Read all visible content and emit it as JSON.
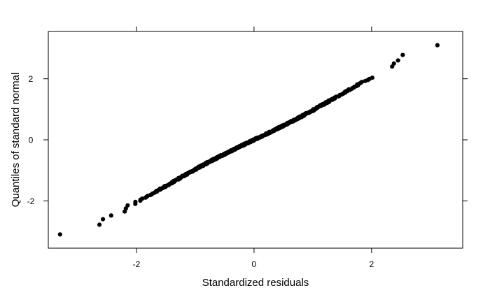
{
  "chart_data": {
    "type": "scatter",
    "title": "",
    "xlabel": "Standardized residuals",
    "ylabel": "Quantiles of standard normal",
    "xlim": [
      -3.5,
      3.55
    ],
    "ylim": [
      -3.55,
      3.55
    ],
    "x_ticks": [
      -2,
      0,
      2
    ],
    "x_tick_labels": [
      "-2",
      "0",
      "2"
    ],
    "y_ticks": [
      -2,
      0,
      2
    ],
    "y_tick_labels": [
      "-2",
      "0",
      "2"
    ],
    "grid": false,
    "n_points": 500,
    "point_color": "#000000",
    "outlier_points": [
      {
        "x": -3.3,
        "y": -3.1
      },
      {
        "x": -2.63,
        "y": -2.78
      },
      {
        "x": -2.57,
        "y": -2.6
      },
      {
        "x": -2.43,
        "y": -2.48
      },
      {
        "x": -2.2,
        "y": -2.35
      },
      {
        "x": -2.18,
        "y": -2.25
      },
      {
        "x": -2.15,
        "y": -2.15
      },
      {
        "x": -2.02,
        "y": -2.1
      },
      {
        "x": 2.35,
        "y": 2.4
      },
      {
        "x": 2.38,
        "y": 2.5
      },
      {
        "x": 2.45,
        "y": 2.6
      },
      {
        "x": 2.53,
        "y": 2.78
      },
      {
        "x": 3.12,
        "y": 3.1
      }
    ]
  }
}
